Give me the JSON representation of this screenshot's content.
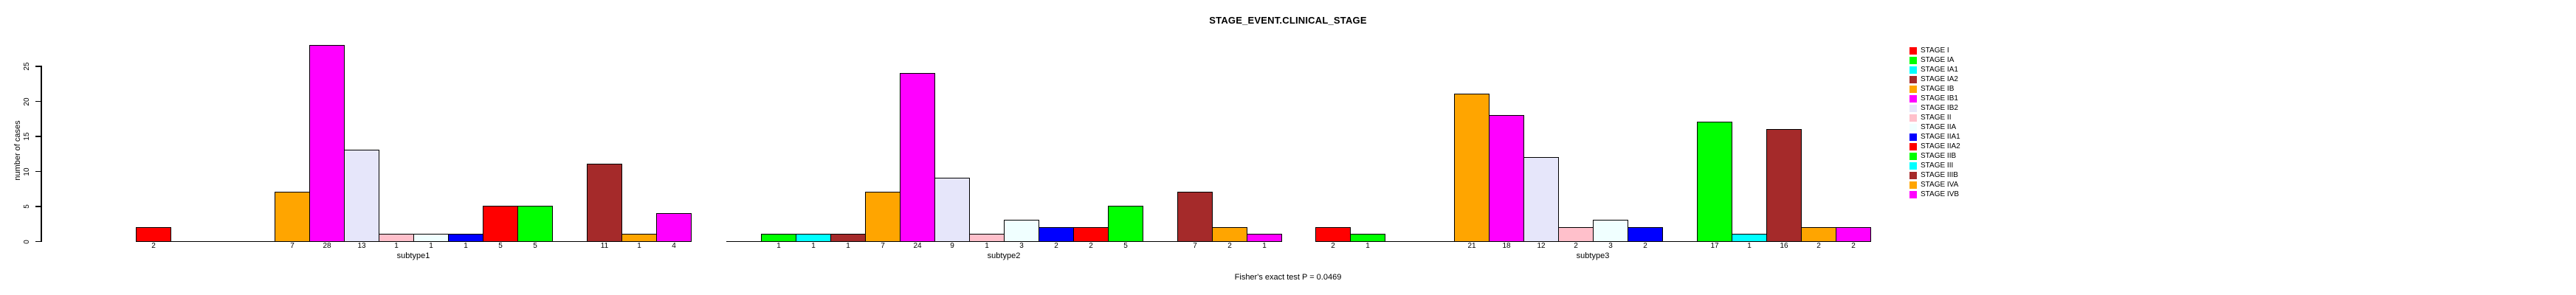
{
  "title": "STAGE_EVENT.CLINICAL_STAGE",
  "footer": "Fisher's exact test P = 0.0469",
  "chart_data": {
    "type": "bar",
    "title": "STAGE_EVENT.CLINICAL_STAGE",
    "ylabel": "number of cases",
    "annotation": "Fisher's exact test P = 0.0469",
    "grid": false,
    "legend_position": "right",
    "ylim": [
      0,
      28.5
    ],
    "yticks": [
      0,
      5,
      10,
      15,
      20,
      25
    ],
    "categories": [
      "STAGE I",
      "STAGE IA",
      "STAGE IA1",
      "STAGE IA2",
      "STAGE IB",
      "STAGE IB1",
      "STAGE IB2",
      "STAGE II",
      "STAGE IIA",
      "STAGE IIA1",
      "STAGE IIA2",
      "STAGE IIB",
      "STAGE III",
      "STAGE IIIB",
      "STAGE IVA",
      "STAGE IVB"
    ],
    "colors": [
      "#FF0000",
      "#00FF00",
      "#00FFFF",
      "#A52A2A",
      "#FFA500",
      "#FF00FF",
      "#E6E6FA",
      "#FFC0CB",
      "#F0FFFF",
      "#0000FF",
      "#FF0000",
      "#00FF00",
      "#00FFFF",
      "#A52A2A",
      "#FFA500",
      "#FF00FF"
    ],
    "series": [
      {
        "name": "subtype1",
        "values": [
          2,
          0,
          0,
          0,
          7,
          28,
          13,
          1,
          1,
          1,
          5,
          5,
          0,
          11,
          1,
          4
        ]
      },
      {
        "name": "subtype2",
        "values": [
          0,
          1,
          1,
          1,
          7,
          24,
          9,
          1,
          3,
          2,
          2,
          5,
          0,
          7,
          2,
          1
        ]
      },
      {
        "name": "subtype3",
        "values": [
          2,
          1,
          0,
          0,
          21,
          18,
          12,
          2,
          3,
          2,
          0,
          17,
          1,
          16,
          2,
          2
        ]
      }
    ]
  },
  "legend": {
    "entries": [
      {
        "label": "STAGE I",
        "color": "#FF0000"
      },
      {
        "label": "STAGE IA",
        "color": "#00FF00"
      },
      {
        "label": "STAGE IA1",
        "color": "#00FFFF"
      },
      {
        "label": "STAGE IA2",
        "color": "#A52A2A"
      },
      {
        "label": "STAGE IB",
        "color": "#FFA500"
      },
      {
        "label": "STAGE IB1",
        "color": "#FF00FF"
      },
      {
        "label": "STAGE IB2",
        "color": "#E6E6FA"
      },
      {
        "label": "STAGE II",
        "color": "#FFC0CB"
      },
      {
        "label": "STAGE IIA",
        "color": "#F0FFFF"
      },
      {
        "label": "STAGE IIA1",
        "color": "#0000FF"
      },
      {
        "label": "STAGE IIA2",
        "color": "#FF0000"
      },
      {
        "label": "STAGE IIB",
        "color": "#00FF00"
      },
      {
        "label": "STAGE III",
        "color": "#00FFFF"
      },
      {
        "label": "STAGE IIIB",
        "color": "#A52A2A"
      },
      {
        "label": "STAGE IVA",
        "color": "#FFA500"
      },
      {
        "label": "STAGE IVB",
        "color": "#FF00FF"
      }
    ]
  }
}
